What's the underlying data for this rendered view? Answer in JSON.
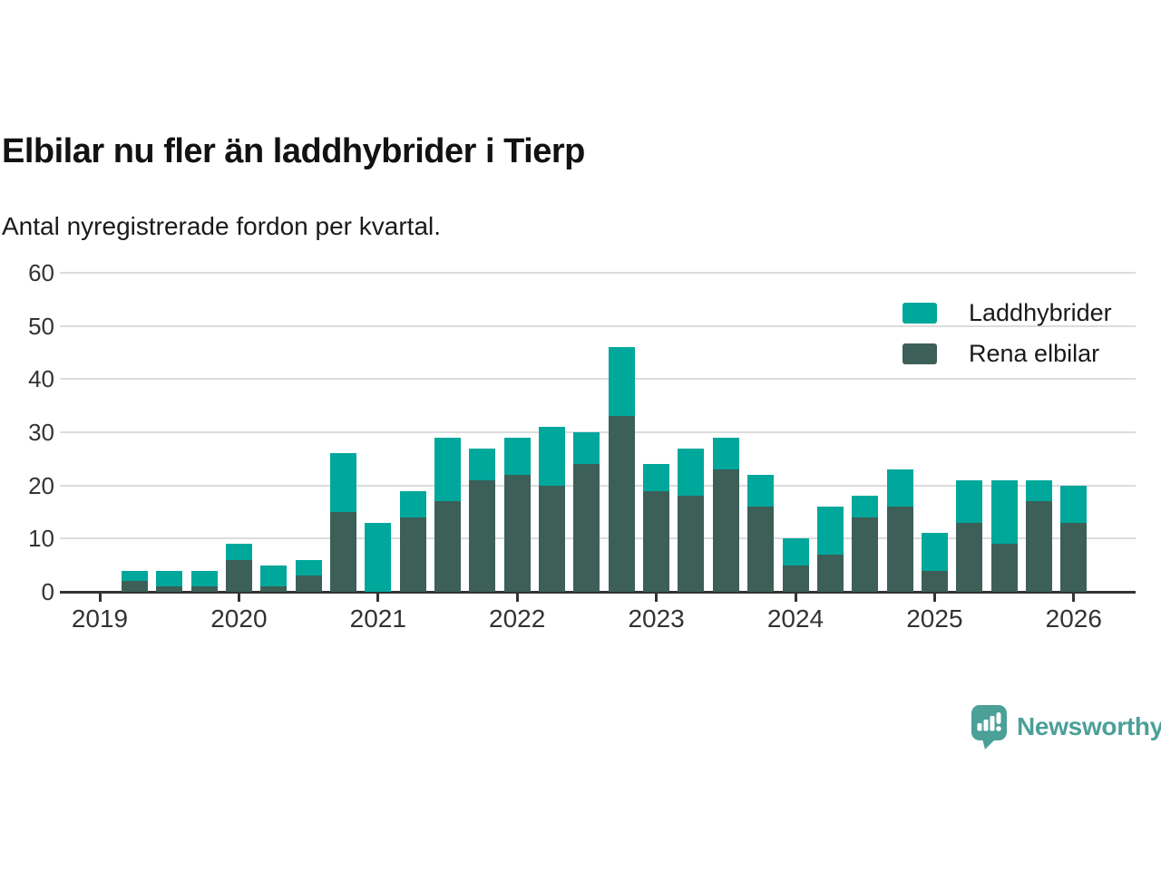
{
  "header": {
    "title": "Elbilar nu fler än laddhybrider i Tierp",
    "subtitle": "Antal nyregistrerade fordon per kvartal."
  },
  "legend": {
    "items": [
      {
        "label": "Laddhybrider",
        "color": "#00a79b"
      },
      {
        "label": "Rena elbilar",
        "color": "#3c5f57"
      }
    ]
  },
  "branding": {
    "logo_text": "Newsworthy",
    "logo_icon": "newsworthy-speech-bubble-chart-icon",
    "color": "#4ba098"
  },
  "colors": {
    "laddhybrider": "#00a79b",
    "rena_elbilar": "#3c5f57",
    "gridline": "#dcdcdc",
    "axis": "#333333",
    "text": "#1a1a1a"
  },
  "chart_data": {
    "type": "bar",
    "stacked": true,
    "title": "Elbilar nu fler än laddhybrider i Tierp",
    "subtitle": "Antal nyregistrerade fordon per kvartal.",
    "xlabel": "",
    "ylabel": "",
    "ylim": [
      0,
      60
    ],
    "y_ticks": [
      0,
      10,
      20,
      30,
      40,
      50,
      60
    ],
    "x_tick_labels": [
      "2019",
      "2020",
      "2021",
      "2022",
      "2023",
      "2024",
      "2025",
      "2026"
    ],
    "grid": "horizontal",
    "legend_position": "top-right",
    "categories": [
      "2019 Q2",
      "2019 Q3",
      "2019 Q4",
      "2020 Q1",
      "2020 Q2",
      "2020 Q3",
      "2020 Q4",
      "2021 Q1",
      "2021 Q2",
      "2021 Q3",
      "2021 Q4",
      "2022 Q1",
      "2022 Q2",
      "2022 Q3",
      "2022 Q4",
      "2023 Q1",
      "2023 Q2",
      "2023 Q3",
      "2023 Q4",
      "2024 Q1",
      "2024 Q2",
      "2024 Q3",
      "2024 Q4",
      "2025 Q1",
      "2025 Q2",
      "2025 Q3",
      "2025 Q4",
      "2026 Q1"
    ],
    "series": [
      {
        "name": "Rena elbilar",
        "color": "#3c5f57",
        "values": [
          2,
          1,
          1,
          6,
          1,
          3,
          15,
          0,
          14,
          17,
          21,
          22,
          20,
          24,
          33,
          19,
          18,
          23,
          16,
          5,
          7,
          14,
          16,
          4,
          13,
          9,
          17,
          13
        ]
      },
      {
        "name": "Laddhybrider",
        "color": "#00a79b",
        "values": [
          2,
          3,
          3,
          3,
          4,
          3,
          11,
          13,
          5,
          12,
          6,
          7,
          11,
          6,
          13,
          5,
          9,
          6,
          6,
          5,
          9,
          4,
          7,
          7,
          8,
          12,
          4,
          7
        ]
      }
    ],
    "totals": [
      4,
      4,
      4,
      9,
      5,
      6,
      26,
      13,
      19,
      29,
      27,
      29,
      31,
      30,
      46,
      24,
      27,
      29,
      22,
      10,
      16,
      18,
      23,
      11,
      21,
      21,
      21,
      20
    ]
  }
}
